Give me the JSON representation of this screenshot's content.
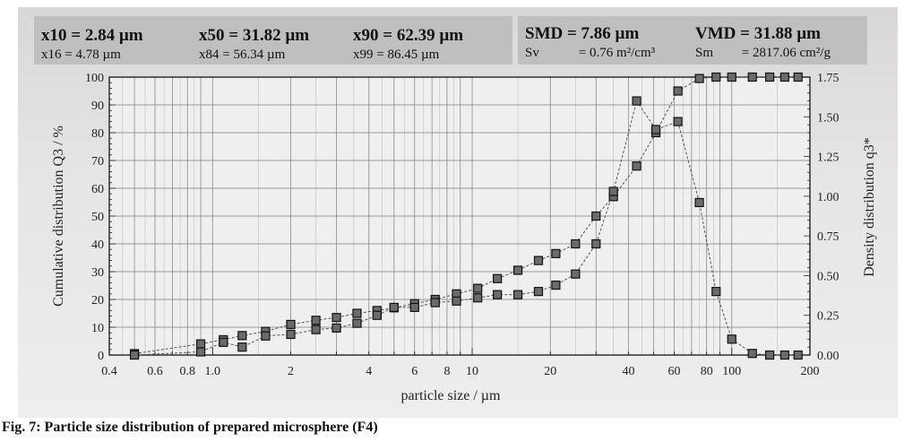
{
  "stats": {
    "x10": {
      "label": "x10",
      "value": "= 2.84 µm"
    },
    "x16": {
      "label": "x16",
      "value": "= 4.78 µm"
    },
    "x50": {
      "label": "x50",
      "value": "= 31.82 µm"
    },
    "x84": {
      "label": "x84",
      "value": "= 56.34 µm"
    },
    "x90": {
      "label": "x90",
      "value": "= 62.39 µm"
    },
    "x99": {
      "label": "x99",
      "value": "= 86.45 µm"
    },
    "smd": {
      "label": "SMD",
      "value": "= 7.86 µm"
    },
    "sv": {
      "label": "Sv",
      "value": "= 0.76 m²/cm³"
    },
    "vmd": {
      "label": "VMD",
      "value": "= 31.88 µm"
    },
    "sm": {
      "label": "Sm",
      "value": "= 2817.06 cm²/g"
    }
  },
  "caption": "Fig. 7: Particle size distribution of prepared microsphere (F4)",
  "chart_data": {
    "type": "line",
    "xlabel": "particle size / µm",
    "ylabel": "Cumulative distribution Q3 / %",
    "y2label": "Density distribution q3*",
    "x_scale": "log",
    "xlim": [
      0.4,
      200
    ],
    "ylim": [
      0,
      100
    ],
    "y2lim": [
      0,
      1.75
    ],
    "grid": true,
    "x_ticks": [
      {
        "v": 0.4,
        "t": "0.4"
      },
      {
        "v": 0.6,
        "t": "0.6"
      },
      {
        "v": 0.8,
        "t": "0.8"
      },
      {
        "v": 1.0,
        "t": "1.0"
      },
      {
        "v": 2,
        "t": "2"
      },
      {
        "v": 4,
        "t": "4"
      },
      {
        "v": 6,
        "t": "6"
      },
      {
        "v": 8,
        "t": "8"
      },
      {
        "v": 10,
        "t": "10"
      },
      {
        "v": 20,
        "t": "20"
      },
      {
        "v": 40,
        "t": "40"
      },
      {
        "v": 60,
        "t": "60"
      },
      {
        "v": 80,
        "t": "80"
      },
      {
        "v": 100,
        "t": "100"
      },
      {
        "v": 200,
        "t": "200"
      }
    ],
    "y_ticks": [
      "0",
      "10",
      "20",
      "30",
      "40",
      "50",
      "60",
      "70",
      "80",
      "90",
      "100"
    ],
    "y2_ticks": [
      {
        "v": 0.0,
        "t": "0.00"
      },
      {
        "v": 0.25,
        "t": "0.25"
      },
      {
        "v": 0.5,
        "t": "0.50"
      },
      {
        "v": 0.75,
        "t": "0.75"
      },
      {
        "v": 1.0,
        "t": "1.00"
      },
      {
        "v": 1.25,
        "t": "1.25"
      },
      {
        "v": 1.5,
        "t": "1.50"
      },
      {
        "v": 1.75,
        "t": "1.75"
      }
    ],
    "series": [
      {
        "axis": "left",
        "x": [
          0.5,
          0.9,
          1.1,
          1.3,
          1.6,
          2.0,
          2.5,
          3.0,
          3.6,
          4.3,
          5.0,
          6.0,
          7.2,
          8.7,
          10.5,
          12.5,
          15,
          18,
          21,
          25,
          30,
          35,
          43,
          51,
          62,
          75,
          87,
          100,
          120,
          140,
          160,
          180
        ],
        "y": [
          0.5,
          4,
          5.5,
          7,
          8.5,
          11,
          12.5,
          13.5,
          15,
          16,
          17,
          18.5,
          20,
          22,
          24,
          27.5,
          30.5,
          34,
          36.5,
          40,
          50,
          57,
          68,
          80,
          95,
          99.5,
          100,
          100,
          100,
          100,
          100,
          100
        ]
      },
      {
        "axis": "right",
        "x": [
          0.5,
          0.9,
          1.1,
          1.3,
          1.6,
          2.0,
          2.5,
          3.0,
          3.6,
          4.3,
          5.0,
          6.0,
          7.2,
          8.7,
          10.5,
          12.5,
          15,
          18,
          21,
          25,
          30,
          35,
          43,
          51,
          62,
          75,
          87,
          100,
          120,
          140,
          160,
          180
        ],
        "y": [
          0.0,
          0.02,
          0.08,
          0.05,
          0.12,
          0.13,
          0.16,
          0.17,
          0.2,
          0.25,
          0.3,
          0.3,
          0.33,
          0.34,
          0.36,
          0.38,
          0.38,
          0.4,
          0.44,
          0.51,
          0.7,
          1.03,
          1.6,
          1.42,
          1.47,
          0.96,
          0.4,
          0.1,
          0.01,
          0.0,
          0.0,
          0.0
        ]
      }
    ]
  }
}
